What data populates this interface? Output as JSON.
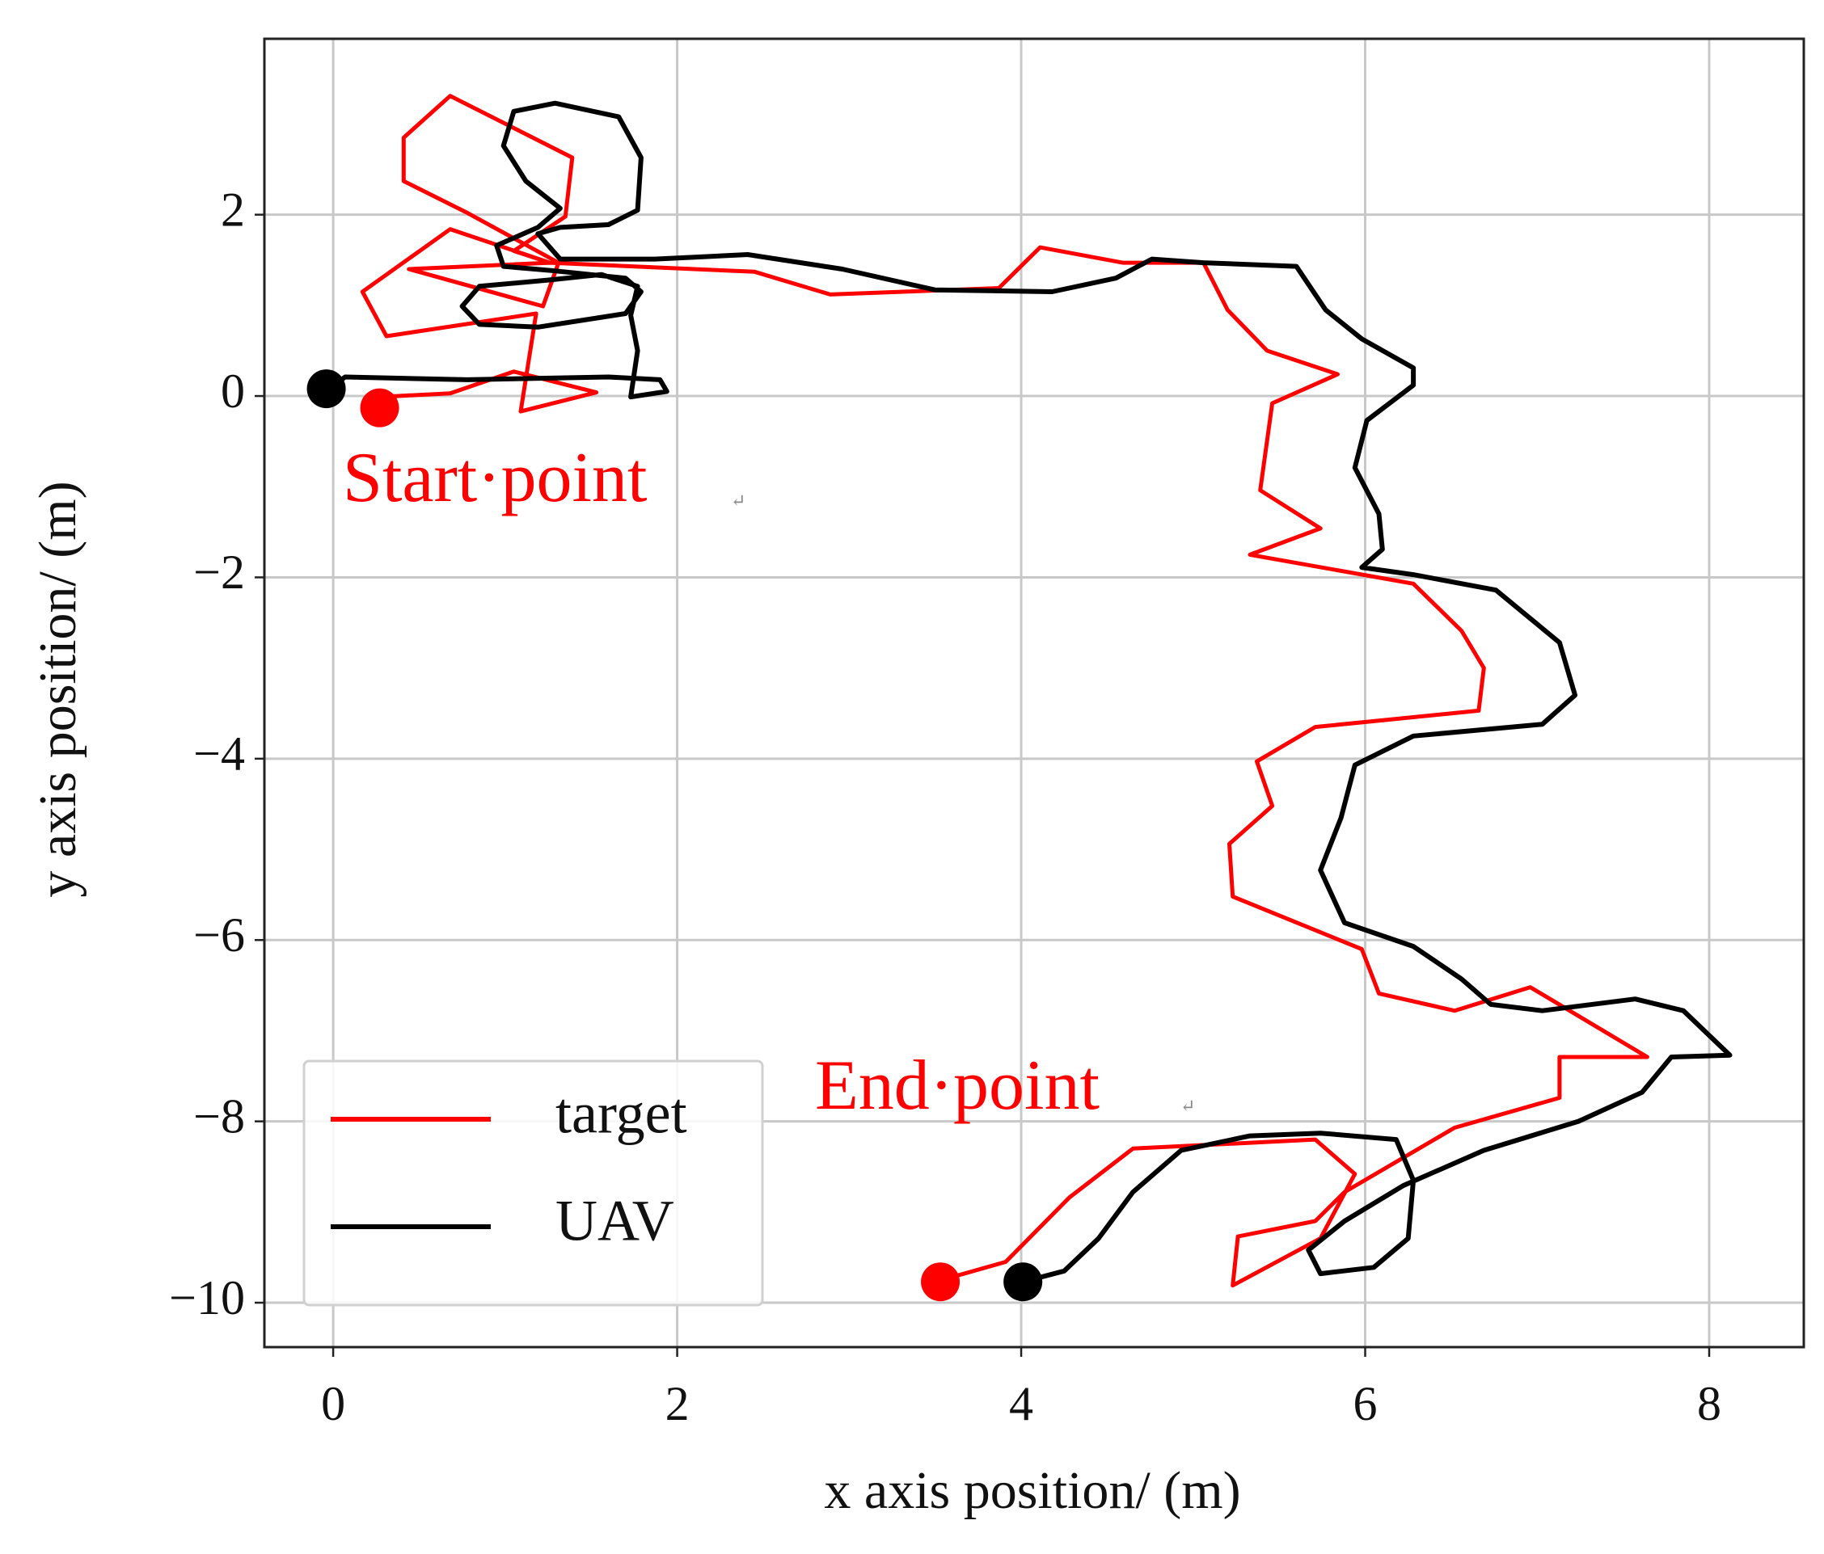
{
  "chart_data": {
    "type": "line",
    "xlabel": "x axis position/ (m)",
    "ylabel": "y axis position/ (m)",
    "xlim": [
      -0.4,
      8.55
    ],
    "ylim": [
      -10.49,
      3.94
    ],
    "xticks": [
      0,
      2,
      4,
      6,
      8
    ],
    "yticks": [
      2,
      0,
      {
        "value": -2,
        "label": "−2"
      },
      {
        "value": -4,
        "label": "−4"
      },
      {
        "value": -6,
        "label": "−6"
      },
      {
        "value": -8,
        "label": "−8"
      },
      {
        "value": -10,
        "label": "−10"
      }
    ],
    "grid": true,
    "legend": "lower left",
    "annotations": [
      {
        "text": "Start·point",
        "mark": "↵",
        "color": "#ff0000"
      },
      {
        "text": "End·point",
        "mark": "↵",
        "color": "#ff0000"
      }
    ],
    "series": [
      {
        "name": "target",
        "color": "#ff0000",
        "start": [
          0.27,
          -0.13
        ],
        "end": [
          3.53,
          -9.77
        ],
        "x": [
          0.27,
          0.68,
          1.05,
          1.53,
          1.09,
          1.18,
          0.31,
          0.17,
          0.68,
          1.26,
          0.44,
          1.22,
          1.31,
          0.78,
          0.41,
          0.41,
          0.68,
          1.39,
          1.35,
          1.05,
          1.26,
          2.45,
          2.89,
          3.87,
          4.11,
          4.59,
          5.06,
          5.2,
          5.43,
          5.84,
          5.46,
          5.39,
          5.74,
          5.33,
          6.28,
          6.56,
          6.69,
          6.66,
          5.71,
          5.37,
          5.46,
          5.21,
          5.23,
          5.98,
          6.08,
          6.52,
          6.96,
          7.64,
          7.13,
          7.13,
          6.52,
          5.88,
          5.71,
          5.26,
          5.23,
          5.74,
          5.94,
          5.71,
          4.65,
          4.28,
          3.91,
          3.5
        ],
        "values": [
          -0.01,
          0.03,
          0.27,
          0.04,
          -0.17,
          0.91,
          0.66,
          1.15,
          1.84,
          1.47,
          1.4,
          0.99,
          1.47,
          2.02,
          2.37,
          2.85,
          3.31,
          2.63,
          1.98,
          1.6,
          1.47,
          1.37,
          1.12,
          1.19,
          1.64,
          1.47,
          1.47,
          0.95,
          0.5,
          0.24,
          -0.08,
          -1.04,
          -1.46,
          -1.75,
          -2.07,
          -2.59,
          -3.0,
          -3.47,
          -3.65,
          -4.03,
          -4.52,
          -4.94,
          -5.52,
          -6.1,
          -6.59,
          -6.78,
          -6.52,
          -7.29,
          -7.29,
          -7.74,
          -8.07,
          -8.78,
          -9.1,
          -9.27,
          -9.81,
          -9.29,
          -8.58,
          -8.2,
          -8.3,
          -8.84,
          -9.55,
          -9.77
        ]
      },
      {
        "name": "UAV",
        "color": "#000000",
        "start": [
          -0.04,
          0.08
        ],
        "end": [
          4.01,
          -9.77
        ],
        "x": [
          -0.03,
          0.07,
          0.78,
          1.6,
          1.9,
          1.94,
          1.73,
          1.77,
          1.73,
          1.77,
          1.56,
          1.26,
          0.85,
          0.75,
          0.85,
          1.19,
          1.7,
          1.79,
          1.7,
          1.29,
          0.99,
          0.95,
          1.19,
          1.32,
          1.12,
          0.99,
          1.05,
          1.29,
          1.66,
          1.79,
          1.77,
          1.6,
          1.32,
          1.19,
          1.32,
          1.87,
          2.41,
          2.96,
          3.5,
          4.18,
          4.55,
          4.76,
          5.06,
          5.6,
          5.77,
          5.98,
          6.28,
          6.28,
          6.01,
          5.94,
          6.08,
          6.1,
          5.98,
          6.28,
          6.76,
          7.13,
          7.22,
          7.03,
          6.28,
          5.94,
          5.86,
          5.74,
          5.88,
          6.28,
          6.56,
          6.73,
          7.03,
          7.57,
          7.85,
          8.12,
          7.78,
          7.61,
          7.24,
          6.69,
          6.22,
          5.88,
          5.67,
          5.74,
          6.05,
          6.25,
          6.28,
          6.18,
          5.74,
          5.33,
          4.93,
          4.65,
          4.45,
          4.25,
          4.01
        ],
        "values": [
          0.08,
          0.21,
          0.18,
          0.21,
          0.18,
          0.05,
          -0.01,
          0.5,
          0.89,
          1.21,
          1.34,
          1.28,
          1.21,
          0.99,
          0.79,
          0.76,
          0.91,
          1.15,
          1.3,
          1.38,
          1.43,
          1.66,
          1.86,
          2.07,
          2.37,
          2.76,
          3.14,
          3.23,
          3.08,
          2.63,
          2.05,
          1.89,
          1.86,
          1.79,
          1.51,
          1.51,
          1.56,
          1.4,
          1.17,
          1.15,
          1.3,
          1.51,
          1.47,
          1.43,
          0.95,
          0.63,
          0.31,
          0.12,
          -0.27,
          -0.79,
          -1.3,
          -1.69,
          -1.89,
          -1.97,
          -2.14,
          -2.72,
          -3.3,
          -3.62,
          -3.75,
          -4.07,
          -4.65,
          -5.23,
          -5.81,
          -6.07,
          -6.43,
          -6.71,
          -6.78,
          -6.65,
          -6.78,
          -7.27,
          -7.29,
          -7.68,
          -8.0,
          -8.32,
          -8.71,
          -9.1,
          -9.42,
          -9.68,
          -9.61,
          -9.29,
          -8.65,
          -8.2,
          -8.13,
          -8.16,
          -8.32,
          -8.78,
          -9.29,
          -9.65,
          -9.77
        ]
      }
    ]
  }
}
